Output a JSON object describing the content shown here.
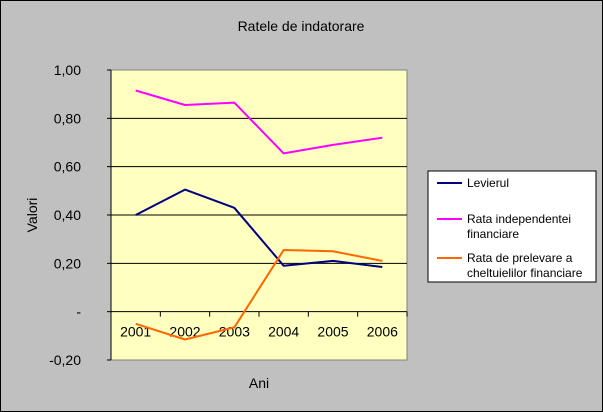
{
  "chart_data": {
    "type": "line",
    "title": "Ratele de indatorare",
    "xlabel": "Ani",
    "ylabel": "Valori",
    "categories": [
      "2001",
      "2002",
      "2003",
      "2004",
      "2005",
      "2006"
    ],
    "ylim": [
      -0.2,
      1.0
    ],
    "yticks": [
      -0.2,
      0,
      0.2,
      0.4,
      0.6,
      0.8,
      1.0
    ],
    "ytick_labels": [
      "-0,20",
      "-",
      "0,20",
      "0,40",
      "0,60",
      "0,80",
      "1,00"
    ],
    "grid": true,
    "legend_position": "right",
    "background_color": "#c0c0c0",
    "plot_area_color": "#ffffc0",
    "series": [
      {
        "name": "Levierul",
        "color": "#000080",
        "values": [
          0.4,
          0.505,
          0.43,
          0.19,
          0.21,
          0.185
        ]
      },
      {
        "name": "Rata independentei financiare",
        "name_lines": [
          "Rata independentei",
          "financiare"
        ],
        "color": "#ff00ff",
        "values": [
          0.915,
          0.855,
          0.865,
          0.655,
          0.69,
          0.72
        ]
      },
      {
        "name": "Rata de prelevare a cheltuielilor financiare",
        "name_lines": [
          "Rata de prelevare a",
          "cheltuielilor financiare"
        ],
        "color": "#ff6600",
        "values": [
          -0.05,
          -0.115,
          -0.065,
          0.255,
          0.25,
          0.21
        ]
      }
    ]
  }
}
